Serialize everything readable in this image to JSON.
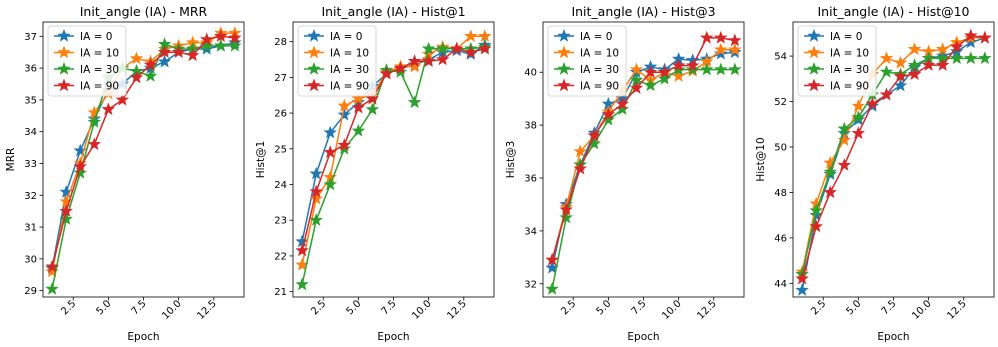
{
  "series_colors": [
    "#1f77b4",
    "#ff7f0e",
    "#2ca02c",
    "#d62728"
  ],
  "chart_data": [
    {
      "type": "line",
      "title": "Init_angle (IA) - MRR",
      "xlabel": "Epoch",
      "ylabel": "MRR",
      "xlim": [
        0.35,
        14.65
      ],
      "ylim": [
        28.8,
        37.45
      ],
      "xticks": [
        2.5,
        5.0,
        7.5,
        10.0,
        12.5
      ],
      "xtick_labels": [
        "2.5",
        "5.0",
        "7.5",
        "10.0",
        "12.5"
      ],
      "yticks": [
        29,
        30,
        31,
        32,
        33,
        34,
        35,
        36,
        37
      ],
      "ytick_labels": [
        "29",
        "30",
        "31",
        "32",
        "33",
        "34",
        "35",
        "36",
        "37"
      ],
      "legend": "top-left",
      "marker": "star",
      "x": [
        1,
        2,
        3,
        4,
        5,
        6,
        7,
        8,
        9,
        10,
        11,
        12,
        13,
        14
      ],
      "series": [
        {
          "name": "IA = 0",
          "values": [
            29.7,
            32.1,
            33.4,
            34.4,
            35.3,
            35.5,
            35.9,
            36.0,
            36.2,
            36.5,
            36.6,
            36.6,
            36.7,
            36.8
          ]
        },
        {
          "name": "IA = 10",
          "values": [
            29.6,
            31.8,
            33.0,
            34.6,
            35.2,
            36.0,
            36.3,
            36.2,
            36.6,
            36.7,
            36.8,
            36.8,
            37.1,
            37.1
          ]
        },
        {
          "name": "IA = 30",
          "values": [
            29.05,
            31.25,
            32.7,
            34.3,
            35.7,
            36.0,
            35.9,
            35.75,
            36.75,
            36.6,
            36.6,
            36.7,
            36.7,
            36.7
          ]
        },
        {
          "name": "IA = 90",
          "values": [
            29.75,
            31.5,
            32.9,
            33.6,
            34.7,
            35.0,
            35.7,
            36.1,
            36.5,
            36.5,
            36.4,
            36.9,
            37.0,
            36.95
          ]
        }
      ]
    },
    {
      "type": "line",
      "title": "Init_angle (IA) - Hist@1",
      "xlabel": "Epoch",
      "ylabel": "Hist@1",
      "xlim": [
        0.35,
        14.65
      ],
      "ylim": [
        20.85,
        28.55
      ],
      "xticks": [
        2.5,
        5.0,
        7.5,
        10.0,
        12.5
      ],
      "xtick_labels": [
        "2.5",
        "5.0",
        "7.5",
        "10.0",
        "12.5"
      ],
      "yticks": [
        21,
        22,
        23,
        24,
        25,
        26,
        27,
        28
      ],
      "ytick_labels": [
        "21",
        "22",
        "23",
        "24",
        "25",
        "26",
        "27",
        "28"
      ],
      "legend": "top-left",
      "marker": "star",
      "x": [
        1,
        2,
        3,
        4,
        5,
        6,
        7,
        8,
        9,
        10,
        11,
        12,
        13,
        14
      ],
      "series": [
        {
          "name": "IA = 0",
          "values": [
            22.4,
            24.3,
            25.45,
            25.95,
            26.3,
            26.75,
            27.1,
            27.25,
            27.35,
            27.5,
            27.7,
            27.75,
            27.65,
            27.9
          ]
        },
        {
          "name": "IA = 10",
          "values": [
            21.75,
            23.6,
            24.2,
            26.2,
            26.4,
            26.5,
            27.15,
            27.3,
            27.3,
            27.65,
            27.85,
            27.8,
            28.15,
            28.15
          ]
        },
        {
          "name": "IA = 30",
          "values": [
            21.2,
            23.0,
            24.0,
            25.0,
            25.5,
            26.1,
            27.2,
            27.15,
            26.3,
            27.8,
            27.8,
            27.8,
            27.8,
            27.85
          ]
        },
        {
          "name": "IA = 90",
          "values": [
            22.15,
            23.8,
            24.9,
            25.1,
            26.15,
            26.4,
            27.1,
            27.25,
            27.45,
            27.45,
            27.5,
            27.8,
            27.7,
            27.8
          ]
        }
      ]
    },
    {
      "type": "line",
      "title": "Init_angle (IA) - Hist@3",
      "xlabel": "Epoch",
      "ylabel": "Hist@3",
      "xlim": [
        0.35,
        14.65
      ],
      "ylim": [
        31.5,
        41.9
      ],
      "xticks": [
        2.5,
        5.0,
        7.5,
        10.0,
        12.5
      ],
      "xtick_labels": [
        "2.5",
        "5.0",
        "7.5",
        "10.0",
        "12.5"
      ],
      "yticks": [
        32,
        34,
        36,
        38,
        40
      ],
      "ytick_labels": [
        "32",
        "34",
        "36",
        "38",
        "40"
      ],
      "legend": "top-left",
      "marker": "star",
      "x": [
        1,
        2,
        3,
        4,
        5,
        6,
        7,
        8,
        9,
        10,
        11,
        12,
        13,
        14
      ],
      "series": [
        {
          "name": "IA = 0",
          "values": [
            32.6,
            35.0,
            36.5,
            37.7,
            38.8,
            39.0,
            40.0,
            40.2,
            40.1,
            40.5,
            40.45,
            40.5,
            40.7,
            40.75
          ]
        },
        {
          "name": "IA = 10",
          "values": [
            32.9,
            34.9,
            37.0,
            37.6,
            38.5,
            39.3,
            40.1,
            39.7,
            40.0,
            39.85,
            40.05,
            40.4,
            40.85,
            40.85
          ]
        },
        {
          "name": "IA = 30",
          "values": [
            31.8,
            34.5,
            36.5,
            37.3,
            38.2,
            38.6,
            39.7,
            39.5,
            39.75,
            40.1,
            40.1,
            40.1,
            40.1,
            40.1
          ]
        },
        {
          "name": "IA = 90",
          "values": [
            32.9,
            34.8,
            36.35,
            37.6,
            38.4,
            38.8,
            39.4,
            40.0,
            40.0,
            40.25,
            40.25,
            41.3,
            41.3,
            41.2
          ]
        }
      ]
    },
    {
      "type": "line",
      "title": "Init_angle (IA) - Hist@10",
      "xlabel": "Epoch",
      "ylabel": "Hist@10",
      "xlim": [
        0.35,
        14.65
      ],
      "ylim": [
        43.4,
        55.5
      ],
      "xticks": [
        2.5,
        5.0,
        7.5,
        10.0,
        12.5
      ],
      "xtick_labels": [
        "2.5",
        "5.0",
        "7.5",
        "10.0",
        "12.5"
      ],
      "yticks": [
        44,
        46,
        48,
        50,
        52,
        54
      ],
      "ytick_labels": [
        "44",
        "46",
        "48",
        "50",
        "52",
        "54"
      ],
      "legend": "top-left",
      "marker": "star",
      "x": [
        1,
        2,
        3,
        4,
        5,
        6,
        7,
        8,
        9,
        10,
        11,
        12,
        13,
        14
      ],
      "series": [
        {
          "name": "IA = 0",
          "values": [
            43.7,
            47.0,
            48.8,
            50.6,
            51.2,
            51.8,
            52.3,
            52.7,
            53.5,
            53.9,
            54.0,
            54.2,
            54.6,
            54.8
          ]
        },
        {
          "name": "IA = 10",
          "values": [
            44.5,
            47.5,
            49.3,
            50.3,
            51.8,
            53.2,
            53.9,
            53.7,
            54.3,
            54.2,
            54.3,
            54.6,
            54.8,
            54.8
          ]
        },
        {
          "name": "IA = 30",
          "values": [
            44.4,
            47.2,
            48.9,
            50.8,
            51.3,
            52.3,
            53.3,
            53.2,
            53.6,
            53.9,
            53.9,
            53.9,
            53.9,
            53.9
          ]
        },
        {
          "name": "IA = 90",
          "values": [
            44.2,
            46.5,
            48.0,
            49.2,
            50.6,
            51.9,
            52.3,
            53.1,
            53.2,
            53.6,
            53.6,
            54.4,
            54.9,
            54.8
          ]
        }
      ]
    }
  ]
}
